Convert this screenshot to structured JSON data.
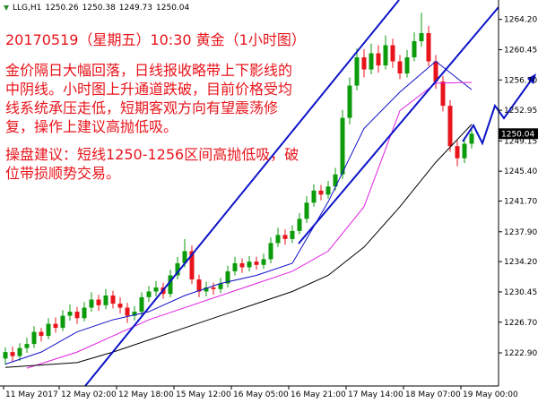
{
  "chart_data": {
    "type": "candlestick",
    "symbol": "LLG,H1",
    "header_quote": [
      1250.26,
      1250.38,
      1249.73,
      1250.04
    ],
    "annotation": {
      "title": "20170519（星期五）10:30 黄金（1小时图）",
      "paragraphs": [
        [
          "金价隔日大幅回落，日线报收略带上下影线的",
          "中阴线。小时图上升通道跌破，目前价格受均",
          "线系统承压走低，短期客观方向有望震荡修",
          "复，操作上建议高抛低吸。"
        ],
        [
          "操盘建议：短线1250-1256区间高抛低吸，破",
          "位带损顺势交易。"
        ]
      ]
    },
    "up_color": "#0b9b0b",
    "down_color": "#e8141b",
    "open": [
      1222.2,
      1223.0,
      1222.5,
      1223.5,
      1224.0,
      1225.5,
      1225.0,
      1226.5,
      1226.0,
      1227.5,
      1228.0,
      1227.2,
      1228.5,
      1229.5,
      1228.8,
      1230.0,
      1229.0,
      1228.5,
      1227.5,
      1228.0,
      1229.8,
      1230.5,
      1231.0,
      1230.2,
      1232.5,
      1234.0,
      1235.5,
      1232.0,
      1230.5,
      1231.0,
      1230.8,
      1231.5,
      1233.0,
      1234.0,
      1233.5,
      1234.2,
      1233.8,
      1234.5,
      1236.5,
      1237.5,
      1237.0,
      1238.0,
      1239.5,
      1241.5,
      1243.0,
      1242.5,
      1243.5,
      1245.0,
      1252.0,
      1256.0,
      1259.5,
      1258.0,
      1260.0,
      1258.5,
      1261.0,
      1259.0,
      1257.5,
      1259.5,
      1261.5,
      1262.5,
      1259.0,
      1256.5,
      1253.5,
      1248.5,
      1247.0,
      1248.8
    ],
    "high": [
      1223.6,
      1223.7,
      1224.1,
      1224.8,
      1226.2,
      1226.0,
      1227.2,
      1227.3,
      1228.2,
      1228.9,
      1228.6,
      1229.2,
      1230.4,
      1230.1,
      1230.8,
      1230.6,
      1229.8,
      1229.1,
      1228.7,
      1230.4,
      1231.2,
      1231.8,
      1231.6,
      1233.2,
      1234.8,
      1237.0,
      1236.2,
      1232.6,
      1231.7,
      1231.6,
      1232.2,
      1233.7,
      1234.8,
      1234.6,
      1234.9,
      1234.8,
      1235.2,
      1237.2,
      1238.4,
      1238.2,
      1238.7,
      1240.2,
      1242.3,
      1243.8,
      1243.7,
      1244.2,
      1245.8,
      1253.0,
      1257.0,
      1260.6,
      1260.5,
      1261.2,
      1261.0,
      1262.2,
      1261.8,
      1259.8,
      1260.4,
      1262.6,
      1265.0,
      1263.4,
      1259.8,
      1257.2,
      1254.2,
      1249.2,
      1249.6,
      1250.6
    ],
    "low": [
      1221.4,
      1221.8,
      1221.9,
      1222.9,
      1223.5,
      1224.3,
      1224.6,
      1225.4,
      1225.6,
      1226.9,
      1226.5,
      1226.8,
      1228.0,
      1228.1,
      1228.3,
      1228.4,
      1227.8,
      1226.6,
      1226.9,
      1227.5,
      1229.2,
      1229.9,
      1229.6,
      1229.8,
      1232.0,
      1233.5,
      1231.4,
      1229.8,
      1229.9,
      1230.1,
      1230.3,
      1231.0,
      1232.5,
      1232.8,
      1233.0,
      1233.2,
      1233.3,
      1234.0,
      1236.0,
      1236.3,
      1236.5,
      1237.6,
      1239.0,
      1241.0,
      1241.8,
      1242.0,
      1243.0,
      1244.4,
      1251.2,
      1255.4,
      1257.0,
      1257.4,
      1257.6,
      1258.0,
      1258.2,
      1256.8,
      1257.0,
      1259.0,
      1260.8,
      1258.4,
      1255.6,
      1252.8,
      1247.8,
      1246.0,
      1246.4,
      1248.2
    ],
    "close": [
      1223.0,
      1222.5,
      1223.5,
      1224.0,
      1225.5,
      1225.0,
      1226.5,
      1226.0,
      1227.5,
      1228.0,
      1227.2,
      1228.5,
      1229.5,
      1228.8,
      1230.0,
      1229.0,
      1228.5,
      1227.5,
      1228.0,
      1229.8,
      1230.5,
      1231.0,
      1230.2,
      1232.5,
      1234.0,
      1235.5,
      1232.0,
      1230.5,
      1231.0,
      1230.8,
      1231.5,
      1233.0,
      1234.0,
      1233.5,
      1234.2,
      1233.8,
      1234.5,
      1236.5,
      1237.5,
      1237.0,
      1238.0,
      1239.5,
      1241.5,
      1243.0,
      1242.5,
      1243.5,
      1245.0,
      1252.0,
      1256.0,
      1259.5,
      1258.0,
      1260.0,
      1258.5,
      1261.0,
      1259.0,
      1257.5,
      1259.5,
      1261.5,
      1262.5,
      1259.0,
      1256.5,
      1253.5,
      1248.5,
      1247.0,
      1248.8,
      1250.04
    ],
    "lines": [
      {
        "color": "#1010c8",
        "x": [
          0,
          5,
          10,
          15,
          20,
          25,
          30,
          35,
          40,
          45,
          50,
          55,
          60,
          65
        ],
        "values": [
          1221.5,
          1223.0,
          1225.5,
          1227.0,
          1228.0,
          1230.0,
          1231.5,
          1232.5,
          1234.0,
          1241.6,
          1250.7,
          1255.2,
          1259.0,
          1255.5
        ]
      },
      {
        "color": "#e020e0",
        "x": [
          3,
          10,
          15,
          20,
          25,
          30,
          35,
          40,
          45,
          50,
          55,
          60,
          65
        ],
        "values": [
          1221.0,
          1223.0,
          1225.0,
          1227.0,
          1228.5,
          1230.0,
          1231.5,
          1233.0,
          1235.5,
          1241.0,
          1252.9,
          1256.3,
          1256.4
        ]
      },
      {
        "color": "#000000",
        "x": [
          0,
          10,
          15,
          20,
          25,
          30,
          35,
          40,
          45,
          50,
          55,
          60,
          65
        ],
        "values": [
          1221.1,
          1221.7,
          1223.0,
          1224.5,
          1226.0,
          1227.5,
          1229.0,
          1230.5,
          1232.5,
          1236.0,
          1241.0,
          1246.5,
          1251.2
        ]
      }
    ],
    "ylim": [
      1218.8,
      1266.6
    ],
    "xlim": [
      -0.5,
      68.75
    ],
    "yticks": [
      {
        "value": 1264.2,
        "label": "1264.20"
      },
      {
        "value": 1260.45,
        "label": "1260.45"
      },
      {
        "value": 1256.7,
        "label": "1256.70"
      },
      {
        "value": 1252.95,
        "label": "1252.95"
      },
      {
        "value": 1249.15,
        "label": "1249.15"
      },
      {
        "value": 1245.4,
        "label": "1245.40"
      },
      {
        "value": 1241.7,
        "label": "1241.70"
      },
      {
        "value": 1237.9,
        "label": "1237.90"
      },
      {
        "value": 1234.2,
        "label": "1234.20"
      },
      {
        "value": 1230.45,
        "label": "1230.45"
      },
      {
        "value": 1226.7,
        "label": "1226.70"
      },
      {
        "value": 1222.9,
        "label": "1222.90"
      }
    ],
    "xticks": [
      {
        "value": -0.25,
        "label": "11 May 2017"
      },
      {
        "value": 7.5,
        "label": "12 May 02:00"
      },
      {
        "value": 15.5,
        "label": "12 May 18:00"
      },
      {
        "value": 23.5,
        "label": "15 May 12:00"
      },
      {
        "value": 31.5,
        "label": "16 May 05:00"
      },
      {
        "value": 39.5,
        "label": "16 May 21:00"
      },
      {
        "value": 47.5,
        "label": "17 May 14:00"
      },
      {
        "value": 55.5,
        "label": "18 May 07:00"
      },
      {
        "value": 63.5,
        "label": "19 May 00:00"
      }
    ]
  }
}
